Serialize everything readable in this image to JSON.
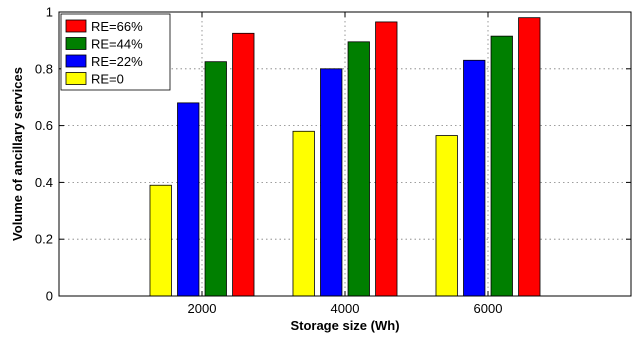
{
  "chart_data": {
    "type": "bar",
    "xlabel": "Storage size (Wh)",
    "ylabel": "Volume of ancillary services",
    "categories": [
      "2000",
      "4000",
      "6000"
    ],
    "x_positions": [
      2000,
      4000,
      6000
    ],
    "xlim": [
      0,
      8000
    ],
    "ylim": [
      0,
      1
    ],
    "yticks": [
      "0",
      "0.2",
      "0.4",
      "0.6",
      "0.8",
      "1"
    ],
    "ytick_values": [
      0,
      0.2,
      0.4,
      0.6,
      0.8,
      1
    ],
    "grid": true,
    "legend_position": "top-left",
    "series": [
      {
        "name": "RE=0",
        "color": "#ffff00",
        "values": [
          0.39,
          0.58,
          0.565
        ]
      },
      {
        "name": "RE=22%",
        "color": "#0000ff",
        "values": [
          0.68,
          0.8,
          0.83
        ]
      },
      {
        "name": "RE=44%",
        "color": "#007f00",
        "values": [
          0.825,
          0.895,
          0.915
        ]
      },
      {
        "name": "RE=66%",
        "color": "#ff0000",
        "values": [
          0.925,
          0.965,
          0.98
        ]
      }
    ],
    "legend_order": [
      "RE=66%",
      "RE=44%",
      "RE=22%",
      "RE=0"
    ]
  }
}
